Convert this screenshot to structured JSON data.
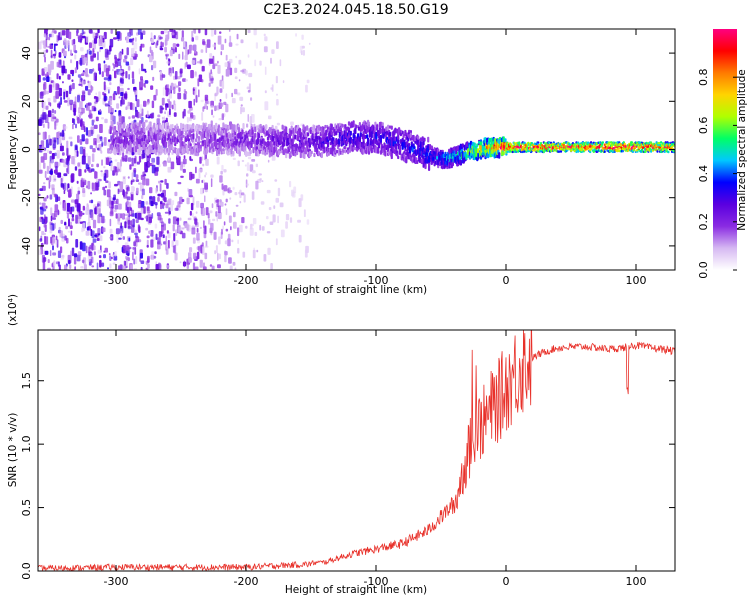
{
  "title": "C2E3.2024.045.18.50.G19",
  "chart_data": [
    {
      "type": "heatmap",
      "xlabel": "Height of straight line (km)",
      "ylabel": "Frequency (Hz)",
      "xlim": [
        -360,
        130
      ],
      "ylim": [
        -50,
        50
      ],
      "xticks": [
        -300,
        -200,
        -100,
        0,
        100
      ],
      "xtick_labels": [
        "-300",
        "-200",
        "-100",
        "0",
        "100"
      ],
      "yticks": [
        -40,
        -20,
        0,
        20,
        40
      ],
      "ytick_labels": [
        "-40",
        "-20",
        "0",
        "20",
        "40"
      ],
      "colorbar": {
        "label": "Normalized spectral amplitude",
        "range": [
          0,
          1
        ],
        "ticks": [
          0.0,
          0.2,
          0.4,
          0.6,
          0.8
        ],
        "tick_labels": [
          "0.0",
          "0.2",
          "0.4",
          "0.6",
          "0.8"
        ],
        "colors": [
          "#ffffff",
          "#d6b8f2",
          "#8a2be2",
          "#5a00e0",
          "#0000ff",
          "#00c8ff",
          "#00ff66",
          "#b0ff00",
          "#ffd400",
          "#ff7a00",
          "#ff0000",
          "#ff0080"
        ]
      },
      "trend": {
        "x": [
          -305,
          -250,
          -200,
          -150,
          -120,
          -100,
          -80,
          -60,
          -50,
          -40,
          -30,
          -20,
          -10,
          0,
          20,
          50,
          80,
          100,
          130
        ],
        "freq": [
          5,
          4,
          4,
          3,
          5,
          5,
          2,
          -2,
          -4,
          -3,
          -1,
          0,
          1,
          1,
          1,
          1,
          1,
          1,
          1
        ],
        "amplitude": [
          0.2,
          0.18,
          0.2,
          0.25,
          0.3,
          0.3,
          0.32,
          0.35,
          0.4,
          0.45,
          0.55,
          0.7,
          0.8,
          0.9,
          0.85,
          0.85,
          0.9,
          0.9,
          0.8
        ]
      },
      "grid": false
    },
    {
      "type": "line",
      "xlabel": "Height of straight line (km)",
      "ylabel": "SNR (10 * v/v)",
      "y_multiplier": "(x10⁴)",
      "xlim": [
        -360,
        130
      ],
      "ylim": [
        0,
        1.9
      ],
      "xticks": [
        -300,
        -200,
        -100,
        0,
        100
      ],
      "xtick_labels": [
        "-300",
        "-200",
        "-100",
        "0",
        "100"
      ],
      "yticks": [
        0.0,
        0.5,
        1.0,
        1.5
      ],
      "ytick_labels": [
        "0.0",
        "0.5",
        "1.0",
        "1.5"
      ],
      "series": [
        {
          "color": "#e8312a",
          "x": [
            -360,
            -300,
            -250,
            -200,
            -180,
            -160,
            -140,
            -120,
            -100,
            -80,
            -60,
            -50,
            -40,
            -35,
            -30,
            -25,
            -20,
            -15,
            -10,
            -5,
            0,
            10,
            20,
            30,
            40,
            60,
            80,
            90,
            100,
            110,
            120,
            130
          ],
          "y": [
            0.02,
            0.03,
            0.03,
            0.03,
            0.04,
            0.05,
            0.06,
            0.12,
            0.16,
            0.2,
            0.3,
            0.4,
            0.5,
            0.7,
            0.9,
            1.05,
            1.15,
            1.2,
            1.3,
            1.35,
            1.45,
            1.6,
            1.68,
            1.73,
            1.76,
            1.77,
            1.75,
            1.76,
            1.78,
            1.76,
            1.75,
            1.73
          ]
        }
      ],
      "grid": false
    }
  ]
}
